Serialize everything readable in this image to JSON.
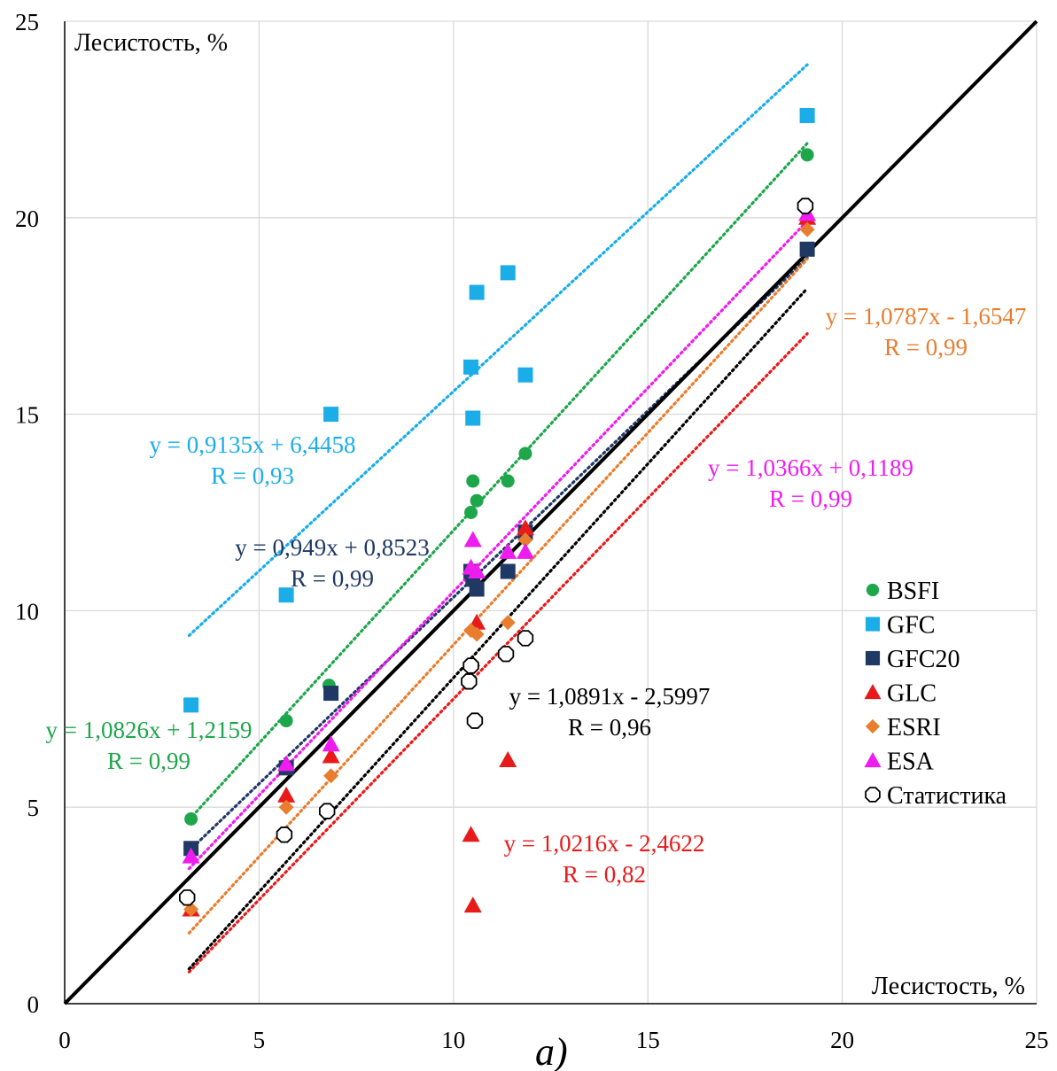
{
  "chart_data": {
    "type": "scatter",
    "title": "",
    "xlabel": "Лесистость, %",
    "ylabel": "Лесистость, %",
    "panel_label": "а)",
    "xlim": [
      0,
      25
    ],
    "ylim": [
      0,
      25
    ],
    "x_ticks": [
      0,
      5,
      10,
      15,
      20,
      25
    ],
    "y_ticks": [
      0,
      5,
      10,
      15,
      20,
      25
    ],
    "grid": true,
    "legend_position": "right",
    "reference_line": {
      "from": [
        0,
        0
      ],
      "to": [
        25,
        25
      ],
      "color": "#000000"
    },
    "series": [
      {
        "name": "BSFI",
        "marker": "circle",
        "color": "#1ea64b",
        "points": [
          [
            3.25,
            4.7
          ],
          [
            5.7,
            7.2
          ],
          [
            6.8,
            8.1
          ],
          [
            10.45,
            12.5
          ],
          [
            10.5,
            13.3
          ],
          [
            10.6,
            12.8
          ],
          [
            11.4,
            13.3
          ],
          [
            11.85,
            14.0
          ],
          [
            19.1,
            21.6
          ]
        ],
        "trendline": {
          "x_range": [
            3.2,
            19.1
          ],
          "equation": "y = 1,0826x + 1,2159",
          "r": "R = 0,99"
        }
      },
      {
        "name": "GFC",
        "marker": "square",
        "color": "#1aade8",
        "points": [
          [
            3.25,
            7.6
          ],
          [
            5.7,
            10.4
          ],
          [
            6.85,
            15.0
          ],
          [
            10.45,
            16.2
          ],
          [
            10.5,
            14.9
          ],
          [
            10.6,
            18.1
          ],
          [
            11.4,
            18.6
          ],
          [
            11.85,
            16.0
          ],
          [
            19.1,
            22.6
          ]
        ],
        "trendline": {
          "x_range": [
            3.2,
            19.1
          ],
          "equation": "y = 0,9135x + 6,4458",
          "r": "R = 0,93"
        }
      },
      {
        "name": "GFC20",
        "marker": "square",
        "color": "#1f3864",
        "points": [
          [
            3.25,
            3.95
          ],
          [
            5.7,
            6.0
          ],
          [
            6.85,
            7.9
          ],
          [
            10.45,
            11.0
          ],
          [
            10.5,
            10.8
          ],
          [
            10.6,
            10.55
          ],
          [
            11.4,
            11.0
          ],
          [
            11.85,
            12.0
          ],
          [
            19.1,
            19.2
          ]
        ],
        "trendline": {
          "x_range": [
            3.2,
            19.1
          ],
          "equation": "y = 0,949x + 0,8523",
          "r": "R = 0,99"
        }
      },
      {
        "name": "GLC",
        "marker": "triangle",
        "color": "#e81a1a",
        "points": [
          [
            3.25,
            2.4
          ],
          [
            5.7,
            5.3
          ],
          [
            6.85,
            6.3
          ],
          [
            10.45,
            4.3
          ],
          [
            10.5,
            2.5
          ],
          [
            10.6,
            9.7
          ],
          [
            11.4,
            6.2
          ],
          [
            11.85,
            12.1
          ],
          [
            19.1,
            20.0
          ]
        ],
        "trendline": {
          "x_range": [
            3.2,
            19.1
          ],
          "equation": "y = 1,0216x - 2,4622",
          "r": "R = 0,82"
        }
      },
      {
        "name": "ESRI",
        "marker": "diamond",
        "color": "#e87d2e",
        "points": [
          [
            3.25,
            2.4
          ],
          [
            5.7,
            5.0
          ],
          [
            6.85,
            5.8
          ],
          [
            10.45,
            9.5
          ],
          [
            10.5,
            8.6
          ],
          [
            10.6,
            9.4
          ],
          [
            11.4,
            9.7
          ],
          [
            11.85,
            11.8
          ],
          [
            19.1,
            19.7
          ]
        ],
        "trendline": {
          "x_range": [
            3.2,
            19.1
          ],
          "equation": "y = 1,0787x - 1,6547",
          "r": "R = 0,99"
        }
      },
      {
        "name": "ESA",
        "marker": "triangle",
        "color": "#ee1cee",
        "points": [
          [
            3.25,
            3.75
          ],
          [
            5.7,
            6.1
          ],
          [
            6.85,
            6.6
          ],
          [
            10.45,
            11.1
          ],
          [
            10.5,
            11.8
          ],
          [
            10.6,
            11.0
          ],
          [
            11.4,
            11.5
          ],
          [
            11.85,
            11.5
          ],
          [
            19.1,
            20.1
          ]
        ],
        "trendline": {
          "x_range": [
            3.2,
            19.1
          ],
          "equation": "y = 1,0366x + 0,1189",
          "r": "R = 0,99"
        }
      },
      {
        "name": "Статистика",
        "marker": "open-octagon",
        "color": "#000000",
        "points": [
          [
            3.15,
            2.7
          ],
          [
            5.65,
            4.3
          ],
          [
            6.75,
            4.9
          ],
          [
            10.4,
            8.2
          ],
          [
            10.45,
            8.6
          ],
          [
            10.55,
            7.2
          ],
          [
            11.35,
            8.9
          ],
          [
            11.85,
            9.3
          ],
          [
            19.05,
            20.3
          ]
        ],
        "trendline": {
          "x_range": [
            3.2,
            19.1
          ],
          "equation": "y = 1,0891x - 2,5997",
          "r": "R = 0,96"
        }
      }
    ]
  }
}
